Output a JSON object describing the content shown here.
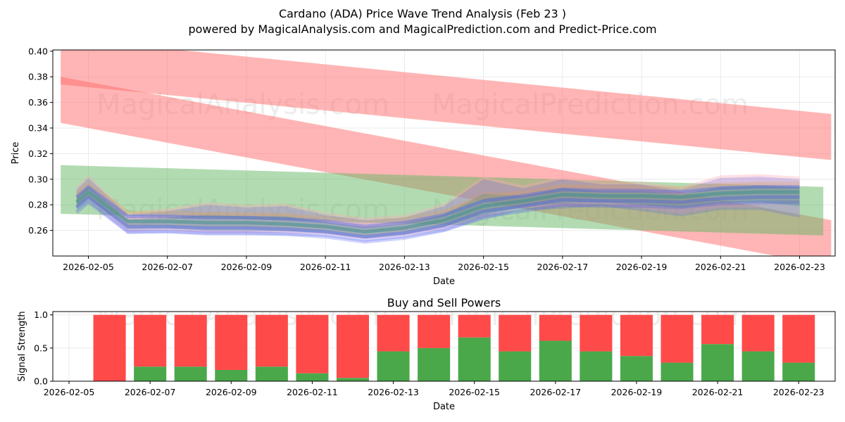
{
  "title": "Cardano (ADA) Price Wave Trend Analysis (Feb 23 )",
  "subtitle": "powered by MagicalAnalysis.com and MagicalPrediction.com and Predict-Price.com",
  "watermarks": [
    "MagicalAnalysis.com",
    "MagicalPrediction.com"
  ],
  "colors": {
    "red_band": "#ff6b6b",
    "green_band": "#66b866",
    "wave_blue": "#4455ee",
    "wave_teal": "#3f8f8f",
    "wave_orange": "#e0a050",
    "wave_pink": "#ffaab5",
    "buy": "#4aa84a",
    "sell": "#ff4a4a",
    "grid": "#e5e5e5"
  },
  "chart_data": [
    {
      "type": "line",
      "title": "",
      "xlabel": "Date",
      "ylabel": "Price",
      "x_ticks": [
        "2026-02-05",
        "2026-02-07",
        "2026-02-09",
        "2026-02-11",
        "2026-02-13",
        "2026-02-15",
        "2026-02-17",
        "2026-02-19",
        "2026-02-21",
        "2026-02-23"
      ],
      "y_ticks": [
        "0.26",
        "0.28",
        "0.30",
        "0.32",
        "0.34",
        "0.36",
        "0.38",
        "0.40"
      ],
      "xlim_days": [
        4.1,
        23.9
      ],
      "ylim": [
        0.24,
        0.401
      ],
      "grid": true,
      "bands": [
        {
          "name": "upper red band",
          "color": "red",
          "x": [
            4.3,
            23.8
          ],
          "center": [
            0.392,
            0.333
          ],
          "width": 0.036
        },
        {
          "name": "middle red band",
          "color": "red",
          "x": [
            4.3,
            23.8
          ],
          "center": [
            0.362,
            0.25
          ],
          "width": 0.036
        },
        {
          "name": "green band",
          "color": "green",
          "x": [
            4.3,
            23.6
          ],
          "center": [
            0.292,
            0.275
          ],
          "width": 0.038
        }
      ],
      "x": [
        4.7,
        5.0,
        6.0,
        7.0,
        8.0,
        9.0,
        10.0,
        11.0,
        12.0,
        13.0,
        14.0,
        15.0,
        16.0,
        17.0,
        18.0,
        19.0,
        20.0,
        21.0,
        22.0,
        23.0
      ],
      "series": [
        {
          "name": "wave mean",
          "values": [
            0.282,
            0.29,
            0.267,
            0.267,
            0.266,
            0.266,
            0.265,
            0.263,
            0.259,
            0.262,
            0.268,
            0.279,
            0.283,
            0.288,
            0.287,
            0.287,
            0.286,
            0.289,
            0.29,
            0.29
          ]
        },
        {
          "name": "wave high",
          "values": [
            0.292,
            0.301,
            0.272,
            0.275,
            0.28,
            0.278,
            0.279,
            0.272,
            0.268,
            0.27,
            0.279,
            0.3,
            0.293,
            0.3,
            0.296,
            0.296,
            0.292,
            0.301,
            0.302,
            0.3
          ]
        },
        {
          "name": "wave low",
          "values": [
            0.275,
            0.282,
            0.257,
            0.258,
            0.256,
            0.256,
            0.256,
            0.255,
            0.251,
            0.254,
            0.259,
            0.268,
            0.276,
            0.277,
            0.279,
            0.275,
            0.271,
            0.276,
            0.276,
            0.27
          ]
        }
      ]
    },
    {
      "type": "bar",
      "title": "Buy and Sell Powers",
      "xlabel": "Date",
      "ylabel": "Signal Strength",
      "x_ticks": [
        "2026-02-05",
        "2026-02-07",
        "2026-02-09",
        "2026-02-11",
        "2026-02-13",
        "2026-02-15",
        "2026-02-17",
        "2026-02-19",
        "2026-02-21",
        "2026-02-23"
      ],
      "y_ticks": [
        "0.0",
        "0.5",
        "1.0"
      ],
      "xlim_days": [
        4.6,
        23.9
      ],
      "ylim": [
        0,
        1.05
      ],
      "grid": true,
      "x": [
        6,
        7,
        8,
        9,
        10,
        11,
        12,
        13,
        14,
        15,
        16,
        17,
        18,
        19,
        20,
        21,
        22,
        23
      ],
      "series": [
        {
          "name": "Buy",
          "values": [
            0.0,
            0.22,
            0.22,
            0.17,
            0.22,
            0.12,
            0.05,
            0.45,
            0.5,
            0.66,
            0.45,
            0.61,
            0.45,
            0.38,
            0.28,
            0.56,
            0.45,
            0.28
          ]
        },
        {
          "name": "Sell",
          "values": [
            1.0,
            0.78,
            0.78,
            0.83,
            0.78,
            0.88,
            0.95,
            0.55,
            0.5,
            0.34,
            0.55,
            0.39,
            0.55,
            0.62,
            0.72,
            0.44,
            0.55,
            0.72
          ]
        }
      ]
    }
  ]
}
